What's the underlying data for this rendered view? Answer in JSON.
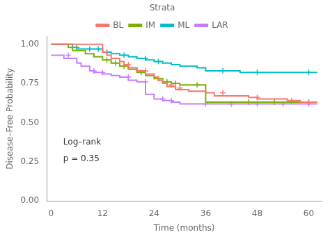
{
  "chart_data": {
    "type": "line",
    "line_style": "step",
    "xlabel": "Time (months)",
    "ylabel": "Disease–Free Probability",
    "xlim": [
      -1,
      63
    ],
    "ylim": [
      0.0,
      1.05
    ],
    "xticks": [
      0,
      12,
      24,
      36,
      48,
      60
    ],
    "yticks": [
      {
        "value": 0.0,
        "label": "0.00"
      },
      {
        "value": 0.25,
        "label": "0.25"
      },
      {
        "value": 0.5,
        "label": "0.50"
      },
      {
        "value": 0.75,
        "label": "0.75"
      },
      {
        "value": 1.0,
        "label": "1.00"
      }
    ],
    "grid": false,
    "legend": "top",
    "legend_title": "Strata",
    "annotations": [
      "Log–rank",
      "p = 0.35"
    ],
    "series": [
      {
        "name": "BL",
        "color": "#F8766D",
        "marker": "plus",
        "x": [
          0,
          12,
          12,
          13,
          14,
          16,
          17,
          18,
          20,
          22,
          24,
          25,
          26,
          27,
          29,
          32,
          36,
          38,
          46,
          48,
          55,
          58,
          60,
          62
        ],
        "values": [
          1.0,
          1.0,
          0.97,
          0.95,
          0.93,
          0.91,
          0.89,
          0.87,
          0.85,
          0.83,
          0.81,
          0.79,
          0.77,
          0.75,
          0.73,
          0.71,
          0.7,
          0.69,
          0.67,
          0.66,
          0.65,
          0.64,
          0.63,
          0.63
        ],
        "censor_x": [
          13,
          18,
          22,
          28,
          30,
          40,
          48,
          56,
          60
        ],
        "censor_y": [
          0.95,
          0.87,
          0.83,
          0.74,
          0.72,
          0.69,
          0.66,
          0.64,
          0.63
        ]
      },
      {
        "name": "IM",
        "color": "#7CAE00",
        "marker": "plus",
        "x": [
          0,
          4,
          5,
          8,
          10,
          12,
          14,
          16,
          18,
          20,
          22,
          24,
          26,
          28,
          30,
          34,
          36,
          36,
          60,
          62
        ],
        "values": [
          1.0,
          1.0,
          0.98,
          0.96,
          0.94,
          0.92,
          0.9,
          0.88,
          0.86,
          0.84,
          0.82,
          0.8,
          0.78,
          0.76,
          0.75,
          0.74,
          0.74,
          0.63,
          0.63,
          0.63
        ],
        "censor_x": [
          6,
          13,
          15,
          17,
          21,
          25,
          27,
          29,
          34,
          46,
          52,
          60
        ],
        "censor_y": [
          0.98,
          0.9,
          0.88,
          0.86,
          0.82,
          0.78,
          0.76,
          0.75,
          0.74,
          0.63,
          0.63,
          0.63
        ]
      },
      {
        "name": "ML",
        "color": "#00BFC4",
        "marker": "plus",
        "x": [
          0,
          5,
          6,
          8,
          12,
          14,
          16,
          18,
          20,
          22,
          24,
          26,
          28,
          30,
          34,
          36,
          44,
          60,
          62
        ],
        "values": [
          1.0,
          1.0,
          0.98,
          0.97,
          0.97,
          0.95,
          0.94,
          0.93,
          0.92,
          0.91,
          0.9,
          0.89,
          0.88,
          0.87,
          0.86,
          0.85,
          0.83,
          0.82,
          0.82
        ],
        "censor_x": [
          9,
          11,
          13,
          17,
          22,
          25,
          40,
          48,
          60
        ],
        "censor_y": [
          0.97,
          0.97,
          0.95,
          0.93,
          0.91,
          0.89,
          0.83,
          0.82,
          0.82
        ]
      },
      {
        "name": "LAR",
        "color": "#C77CFF",
        "marker": "plus",
        "x": [
          0,
          0,
          3,
          6,
          7,
          9,
          10,
          12,
          14,
          16,
          18,
          20,
          22,
          24,
          26,
          28,
          30,
          36,
          60,
          62
        ],
        "values": [
          0.93,
          0.93,
          0.93,
          0.91,
          0.88,
          0.86,
          0.83,
          0.82,
          0.81,
          0.8,
          0.79,
          0.77,
          0.76,
          0.68,
          0.65,
          0.64,
          0.63,
          0.62,
          0.62,
          0.62
        ],
        "censor_x": [
          4,
          10,
          12,
          18,
          22,
          26,
          28,
          36,
          42,
          48,
          54,
          60
        ],
        "censor_y": [
          0.93,
          0.83,
          0.82,
          0.79,
          0.76,
          0.65,
          0.64,
          0.62,
          0.62,
          0.62,
          0.62,
          0.62
        ]
      }
    ]
  }
}
